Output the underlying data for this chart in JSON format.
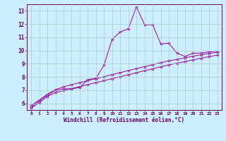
{
  "x_values": [
    0,
    1,
    2,
    3,
    4,
    5,
    6,
    7,
    8,
    9,
    10,
    11,
    12,
    13,
    14,
    15,
    16,
    17,
    18,
    19,
    20,
    21,
    22,
    23
  ],
  "line1_y": [
    5.7,
    6.2,
    6.6,
    7.0,
    7.1,
    7.1,
    7.2,
    7.8,
    7.9,
    8.9,
    10.85,
    11.4,
    11.65,
    13.3,
    11.95,
    11.95,
    10.5,
    10.55,
    9.8,
    9.55,
    9.8,
    9.8,
    9.9,
    9.95
  ],
  "line2_y": [
    5.85,
    6.25,
    6.7,
    7.05,
    7.25,
    7.42,
    7.57,
    7.72,
    7.87,
    8.02,
    8.18,
    8.33,
    8.48,
    8.63,
    8.78,
    8.93,
    9.08,
    9.22,
    9.33,
    9.45,
    9.57,
    9.68,
    9.78,
    9.87
  ],
  "line3_y": [
    5.65,
    6.05,
    6.52,
    6.82,
    6.97,
    7.12,
    7.27,
    7.42,
    7.57,
    7.72,
    7.87,
    8.02,
    8.17,
    8.32,
    8.47,
    8.62,
    8.77,
    8.91,
    9.04,
    9.16,
    9.29,
    9.42,
    9.54,
    9.65
  ],
  "line_color": "#990099",
  "bg_color": "#cceeff",
  "grid_color": "#aacccc",
  "axis_color": "#660066",
  "xlim": [
    -0.5,
    23.5
  ],
  "ylim": [
    5.5,
    13.5
  ],
  "yticks": [
    6,
    7,
    8,
    9,
    10,
    11,
    12,
    13
  ],
  "xticks": [
    0,
    1,
    2,
    3,
    4,
    5,
    6,
    7,
    8,
    9,
    10,
    11,
    12,
    13,
    14,
    15,
    16,
    17,
    18,
    19,
    20,
    21,
    22,
    23
  ],
  "xlabel": "Windchill (Refroidissement éolien,°C)",
  "marker": "*",
  "marker_size": 3,
  "linewidth": 0.7
}
